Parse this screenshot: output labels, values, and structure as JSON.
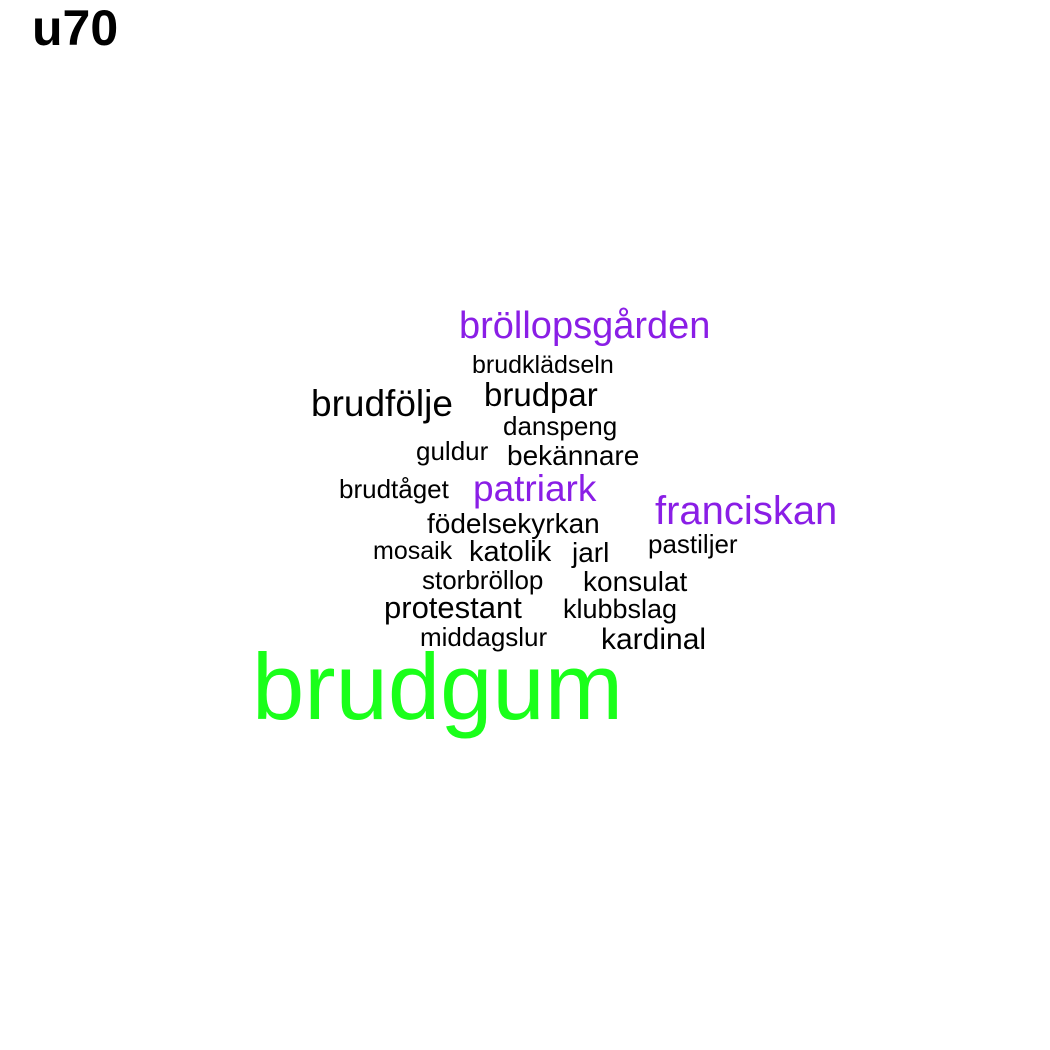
{
  "title": "u70",
  "colors": {
    "default": "#000000",
    "purple": "#8a1ee6",
    "green": "#1aff1a"
  },
  "words": [
    {
      "text": "bröllopsgården",
      "weight": 2,
      "color": "purple"
    },
    {
      "text": "brudklädseln",
      "weight": 1,
      "color": "default"
    },
    {
      "text": "brudfölje",
      "weight": 2,
      "color": "default"
    },
    {
      "text": "brudpar",
      "weight": 2,
      "color": "default"
    },
    {
      "text": "danspeng",
      "weight": 1,
      "color": "default"
    },
    {
      "text": "guldur",
      "weight": 1,
      "color": "default"
    },
    {
      "text": "bekännare",
      "weight": 1,
      "color": "default"
    },
    {
      "text": "brudtåget",
      "weight": 1,
      "color": "default"
    },
    {
      "text": "patriark",
      "weight": 2,
      "color": "purple"
    },
    {
      "text": "franciskan",
      "weight": 2,
      "color": "purple"
    },
    {
      "text": "födelsekyrkan",
      "weight": 1,
      "color": "default"
    },
    {
      "text": "mosaik",
      "weight": 1,
      "color": "default"
    },
    {
      "text": "katolik",
      "weight": 1,
      "color": "default"
    },
    {
      "text": "jarl",
      "weight": 1,
      "color": "default"
    },
    {
      "text": "pastiljer",
      "weight": 1,
      "color": "default"
    },
    {
      "text": "storbröllop",
      "weight": 1,
      "color": "default"
    },
    {
      "text": "konsulat",
      "weight": 1,
      "color": "default"
    },
    {
      "text": "protestant",
      "weight": 1,
      "color": "default"
    },
    {
      "text": "klubbslag",
      "weight": 1,
      "color": "default"
    },
    {
      "text": "middagslur",
      "weight": 1,
      "color": "default"
    },
    {
      "text": "kardinal",
      "weight": 1,
      "color": "default"
    },
    {
      "text": "brudgum",
      "weight": 5,
      "color": "green"
    }
  ]
}
